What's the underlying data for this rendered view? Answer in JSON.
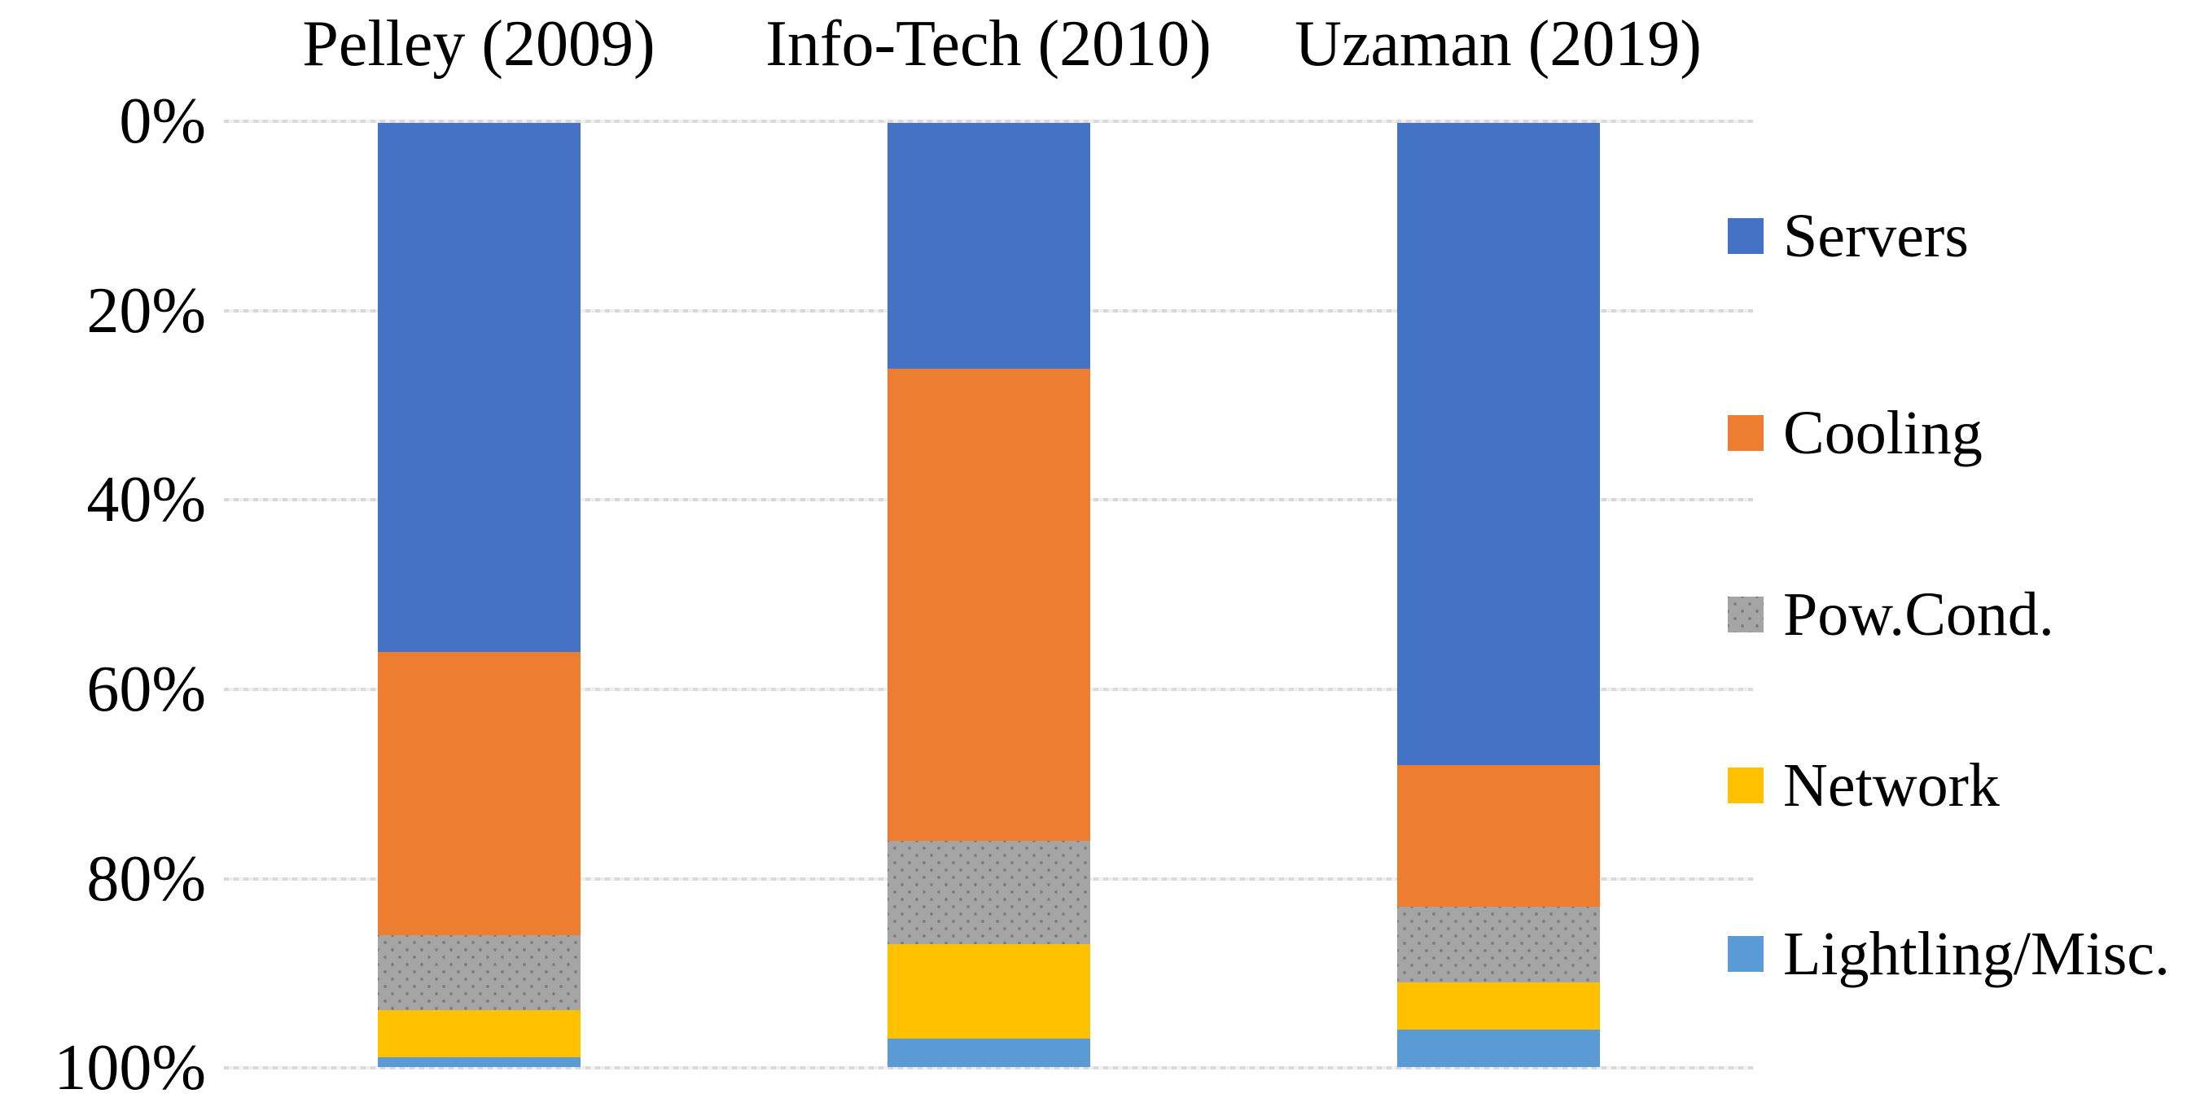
{
  "chart_data": {
    "type": "bar",
    "stacked": true,
    "units": "percent",
    "title": "",
    "categories": [
      "Pelley (2009)",
      "Info-Tech (2010)",
      "Uzaman (2019)"
    ],
    "series": [
      {
        "name": "Servers",
        "color": "#4472C4",
        "pattern": "solid",
        "values": [
          56,
          26,
          68
        ]
      },
      {
        "name": "Cooling",
        "color": "#ED7D31",
        "pattern": "solid",
        "values": [
          30,
          50,
          15
        ]
      },
      {
        "name": "Pow.Cond.",
        "color": "#A5A5A5",
        "pattern": "dots",
        "values": [
          8,
          11,
          8
        ]
      },
      {
        "name": "Network",
        "color": "#FFC000",
        "pattern": "solid",
        "values": [
          5,
          10,
          5
        ]
      },
      {
        "name": "Lightling/Misc.",
        "color": "#5B9BD5",
        "pattern": "solid",
        "values": [
          1,
          3,
          4
        ]
      }
    ],
    "y_axis": {
      "inverted": true,
      "min": 0,
      "max": 100,
      "ticks": [
        "0%",
        "20%",
        "40%",
        "60%",
        "80%",
        "100%"
      ]
    },
    "legend_position": "right",
    "grid": "horizontal-dashed",
    "gridline_color": "#D9D9D9",
    "background_color": "#FFFFFF",
    "text_color": "#000000"
  }
}
